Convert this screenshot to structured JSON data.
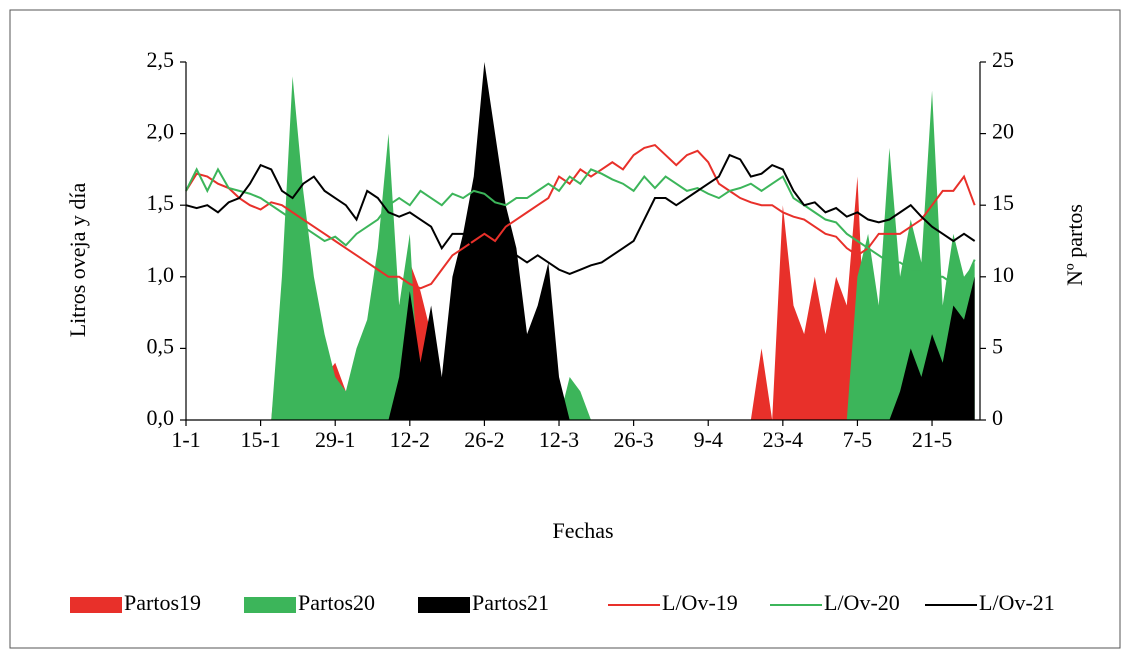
{
  "chart_data": {
    "type": "combo",
    "xlabel": "Fechas",
    "ylabel": "Litros oveja y día",
    "y2label": "Nº partos",
    "x": [
      1,
      3,
      5,
      7,
      9,
      11,
      13,
      15,
      17,
      19,
      21,
      23,
      25,
      27,
      29,
      31,
      33,
      35,
      37,
      39,
      41,
      43,
      45,
      47,
      49,
      51,
      53,
      55,
      57,
      59,
      61,
      63,
      65,
      67,
      69,
      71,
      73,
      75,
      77,
      79,
      81,
      83,
      85,
      87,
      89,
      91,
      93,
      95,
      97,
      99,
      101,
      103,
      105,
      107,
      109,
      111,
      113,
      115,
      117,
      119,
      121,
      123,
      125,
      127,
      129,
      131,
      133,
      135,
      137,
      139,
      141,
      143,
      145,
      147,
      149
    ],
    "xlim": [
      1,
      150
    ],
    "xticks": [
      {
        "value": 1,
        "label": "1-1"
      },
      {
        "value": 15,
        "label": "15-1"
      },
      {
        "value": 29,
        "label": "29-1"
      },
      {
        "value": 43,
        "label": "12-2"
      },
      {
        "value": 57,
        "label": "26-2"
      },
      {
        "value": 71,
        "label": "12-3"
      },
      {
        "value": 85,
        "label": "26-3"
      },
      {
        "value": 99,
        "label": "9-4"
      },
      {
        "value": 113,
        "label": "23-4"
      },
      {
        "value": 127,
        "label": "7-5"
      },
      {
        "value": 141,
        "label": "21-5"
      }
    ],
    "ylim": [
      0,
      2.5
    ],
    "yticks": [
      {
        "value": 0,
        "label": "0,0"
      },
      {
        "value": 0.5,
        "label": "0,5"
      },
      {
        "value": 1,
        "label": "1,0"
      },
      {
        "value": 1.5,
        "label": "1,5"
      },
      {
        "value": 2,
        "label": "2,0"
      },
      {
        "value": 2.5,
        "label": "2,5"
      }
    ],
    "y2lim": [
      0,
      25
    ],
    "y2ticks": [
      0,
      5,
      10,
      15,
      20,
      25
    ],
    "series": [
      {
        "name": "Partos19",
        "type": "area",
        "axis": "y2",
        "color": "#e8302a",
        "values": [
          0,
          0,
          0,
          0,
          0,
          0,
          0,
          0,
          0,
          8,
          10,
          7,
          5,
          3,
          4,
          2,
          0,
          0,
          11,
          10,
          8,
          11,
          9,
          6,
          0,
          0,
          0,
          0,
          0,
          0,
          0,
          0,
          0,
          0,
          0,
          0,
          0,
          0,
          0,
          0,
          0,
          0,
          0,
          0,
          0,
          0,
          0,
          0,
          0,
          0,
          0,
          0,
          0,
          0,
          5,
          0,
          15,
          8,
          6,
          10,
          6,
          10,
          8,
          17,
          0,
          0,
          0,
          0,
          0,
          0,
          0,
          0,
          0,
          0,
          0
        ]
      },
      {
        "name": "Partos20",
        "type": "area",
        "axis": "y2",
        "color": "#3cb55a",
        "values": [
          0,
          0,
          0,
          0,
          0,
          0,
          0,
          0,
          0,
          10,
          24,
          16,
          10,
          6,
          3,
          2,
          5,
          7,
          12,
          20,
          8,
          13,
          0,
          0,
          0,
          0,
          0,
          0,
          0,
          0,
          0,
          0,
          0,
          0,
          0,
          0,
          3,
          2,
          0,
          0,
          0,
          0,
          0,
          0,
          0,
          0,
          0,
          0,
          0,
          0,
          0,
          0,
          0,
          0,
          0,
          0,
          0,
          0,
          0,
          0,
          0,
          0,
          0,
          10,
          13,
          8,
          19,
          10,
          14,
          11,
          23,
          8,
          13,
          10,
          11
        ]
      },
      {
        "name": "Partos21",
        "type": "area",
        "axis": "y2",
        "color": "#000000",
        "values": [
          0,
          0,
          0,
          0,
          0,
          0,
          0,
          0,
          0,
          0,
          0,
          0,
          0,
          0,
          0,
          0,
          0,
          0,
          0,
          0,
          3,
          9,
          4,
          8,
          3,
          10,
          13,
          17,
          25,
          20,
          15,
          12,
          6,
          8,
          11,
          3,
          0,
          0,
          0,
          0,
          0,
          0,
          0,
          0,
          0,
          0,
          0,
          0,
          0,
          0,
          0,
          0,
          0,
          0,
          0,
          0,
          0,
          0,
          0,
          0,
          0,
          0,
          0,
          0,
          0,
          0,
          0,
          2,
          5,
          3,
          6,
          4,
          8,
          7,
          10
        ]
      },
      {
        "name": "L/Ov-19",
        "type": "line",
        "color": "#e8302a",
        "values": [
          1.6,
          1.72,
          1.7,
          1.65,
          1.62,
          1.55,
          1.5,
          1.47,
          1.52,
          1.5,
          1.45,
          1.4,
          1.35,
          1.3,
          1.25,
          1.2,
          1.15,
          1.1,
          1.05,
          1.0,
          1.0,
          0.95,
          0.92,
          0.95,
          1.05,
          1.15,
          1.2,
          1.25,
          1.3,
          1.25,
          1.35,
          1.4,
          1.45,
          1.5,
          1.55,
          1.7,
          1.65,
          1.75,
          1.7,
          1.75,
          1.8,
          1.75,
          1.85,
          1.9,
          1.92,
          1.85,
          1.78,
          1.85,
          1.88,
          1.8,
          1.65,
          1.6,
          1.55,
          1.52,
          1.5,
          1.5,
          1.45,
          1.42,
          1.4,
          1.35,
          1.3,
          1.28,
          1.2,
          1.15,
          1.2,
          1.3,
          1.3,
          1.3,
          1.35,
          1.4,
          1.5,
          1.6,
          1.6,
          1.7,
          1.5
        ]
      },
      {
        "name": "L/Ov-20",
        "type": "line",
        "color": "#3cb55a",
        "values": [
          1.6,
          1.75,
          1.6,
          1.75,
          1.62,
          1.6,
          1.58,
          1.55,
          1.5,
          1.45,
          1.4,
          1.35,
          1.3,
          1.25,
          1.28,
          1.22,
          1.3,
          1.35,
          1.4,
          1.5,
          1.55,
          1.5,
          1.6,
          1.55,
          1.5,
          1.58,
          1.55,
          1.6,
          1.58,
          1.52,
          1.5,
          1.55,
          1.55,
          1.6,
          1.65,
          1.6,
          1.7,
          1.65,
          1.75,
          1.72,
          1.68,
          1.65,
          1.6,
          1.7,
          1.62,
          1.7,
          1.65,
          1.6,
          1.62,
          1.58,
          1.55,
          1.6,
          1.62,
          1.65,
          1.6,
          1.65,
          1.7,
          1.55,
          1.5,
          1.45,
          1.4,
          1.38,
          1.3,
          1.25,
          1.2,
          1.15,
          1.1,
          1.1,
          1.05,
          1.05,
          1.0,
          1.0,
          0.95,
          0.95,
          1.12
        ]
      },
      {
        "name": "L/Ov-21",
        "type": "line",
        "color": "#000000",
        "values": [
          1.5,
          1.48,
          1.5,
          1.45,
          1.52,
          1.55,
          1.65,
          1.78,
          1.75,
          1.6,
          1.55,
          1.65,
          1.7,
          1.6,
          1.55,
          1.5,
          1.4,
          1.6,
          1.55,
          1.45,
          1.42,
          1.45,
          1.4,
          1.35,
          1.2,
          1.3,
          1.3,
          1.2,
          1.25,
          1.2,
          1.25,
          1.15,
          1.1,
          1.15,
          1.1,
          1.05,
          1.02,
          1.05,
          1.08,
          1.1,
          1.15,
          1.2,
          1.25,
          1.4,
          1.55,
          1.55,
          1.5,
          1.55,
          1.6,
          1.65,
          1.7,
          1.85,
          1.82,
          1.7,
          1.72,
          1.78,
          1.75,
          1.6,
          1.5,
          1.52,
          1.45,
          1.48,
          1.42,
          1.45,
          1.4,
          1.38,
          1.4,
          1.45,
          1.5,
          1.42,
          1.35,
          1.3,
          1.25,
          1.3,
          1.25
        ]
      }
    ]
  }
}
